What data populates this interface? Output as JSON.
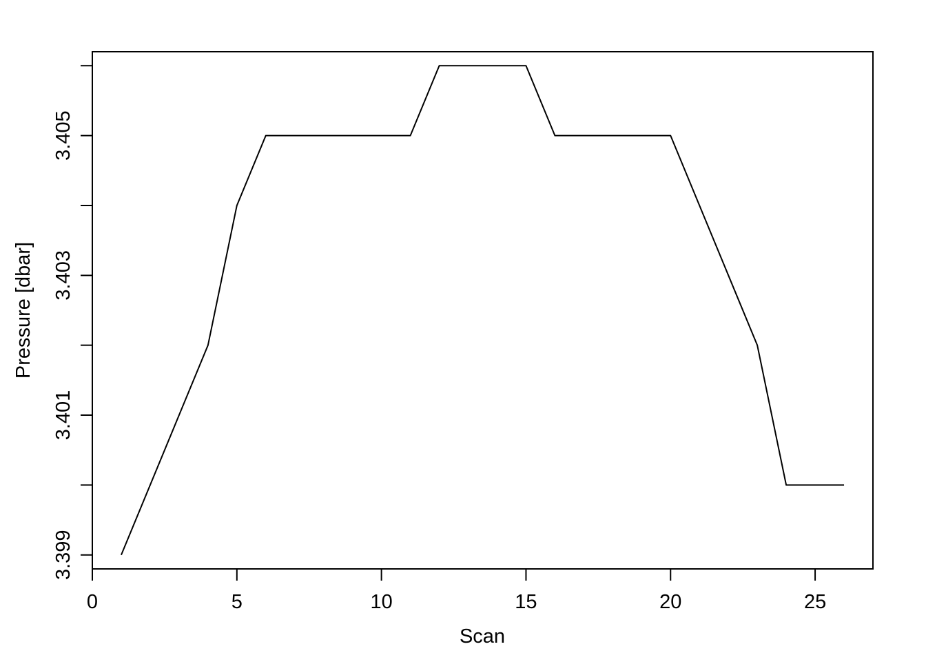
{
  "chart_data": {
    "type": "line",
    "title": "",
    "xlabel": "Scan",
    "ylabel": "Pressure [dbar]",
    "xlim": [
      0,
      27
    ],
    "ylim": [
      3.3988,
      3.4062
    ],
    "xticks": [
      0,
      5,
      10,
      15,
      20,
      25
    ],
    "xtick_labels": [
      "0",
      "5",
      "10",
      "15",
      "20",
      "25"
    ],
    "yticks_major": [
      3.399,
      3.401,
      3.403,
      3.405
    ],
    "ytick_labels": [
      "3.399",
      "3.401",
      "3.403",
      "3.405"
    ],
    "yticks_minor": [
      3.4,
      3.402,
      3.404,
      3.406
    ],
    "grid": false,
    "series": [
      {
        "color": "#000000",
        "x": [
          1,
          2,
          3,
          4,
          5,
          6,
          7,
          8,
          9,
          10,
          11,
          12,
          13,
          14,
          15,
          16,
          17,
          18,
          19,
          20,
          21,
          22,
          23,
          24,
          25,
          26
        ],
        "y": [
          3.399,
          3.4,
          3.401,
          3.402,
          3.404,
          3.405,
          3.405,
          3.405,
          3.405,
          3.405,
          3.405,
          3.406,
          3.406,
          3.406,
          3.406,
          3.405,
          3.405,
          3.405,
          3.405,
          3.405,
          3.404,
          3.403,
          3.402,
          3.4,
          3.4,
          3.4
        ]
      }
    ]
  }
}
